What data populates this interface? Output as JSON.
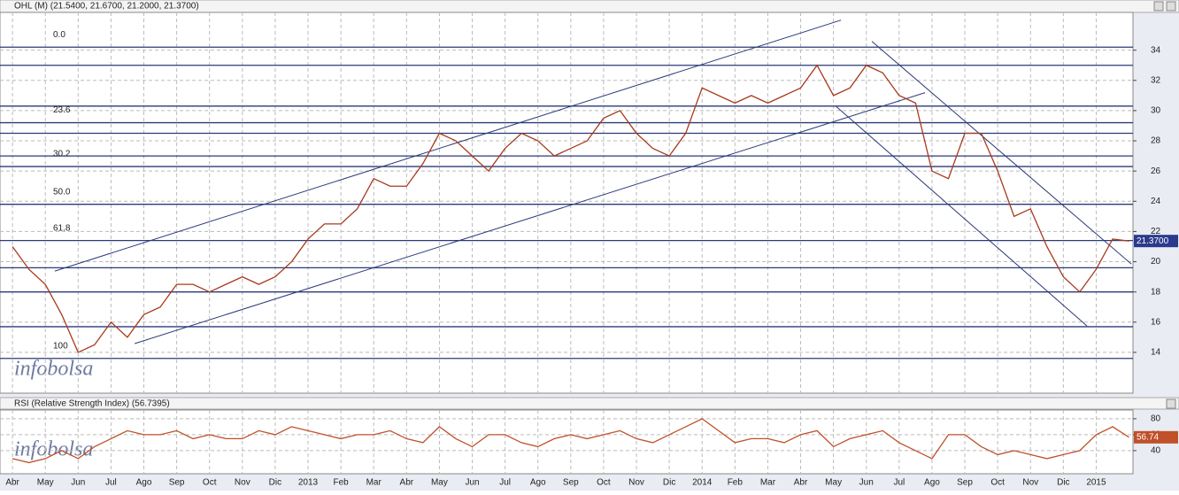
{
  "chart_data": [
    {
      "type": "line",
      "title": "OHL (M) (21.5400, 21.6700, 21.2000, 21.3700)",
      "watermark": "infobolsa",
      "x": [
        0,
        0.5,
        1,
        1.5,
        2,
        2.5,
        3,
        3.5,
        4,
        4.5,
        5,
        5.5,
        6,
        6.5,
        7,
        7.5,
        8,
        8.5,
        9,
        9.5,
        10,
        10.5,
        11,
        11.5,
        12,
        12.5,
        13,
        13.5,
        14,
        14.5,
        15,
        15.5,
        16,
        16.5,
        17,
        17.5,
        18,
        18.5,
        19,
        19.5,
        20,
        20.5,
        21,
        21.5,
        22,
        22.5,
        23,
        23.5,
        24,
        24.5,
        25,
        25.5,
        26,
        26.5,
        27,
        27.5,
        28,
        28.5,
        29,
        29.5,
        30,
        30.5,
        31,
        31.5,
        32,
        32.5,
        33,
        33.5,
        34
      ],
      "series": [
        {
          "name": "OHL",
          "color": "#a83a1c",
          "values": [
            21,
            19.5,
            18.5,
            16.5,
            14,
            14.5,
            16,
            15,
            16.5,
            17,
            18.5,
            18.5,
            18,
            18.5,
            19,
            18.5,
            19,
            20,
            21.5,
            22.5,
            22.5,
            23.5,
            25.5,
            25,
            25,
            26.5,
            28.5,
            28,
            27,
            26,
            27.5,
            28.5,
            28,
            27,
            27.5,
            28,
            29.5,
            30,
            28.5,
            27.5,
            27,
            28.5,
            31.5,
            31,
            30.5,
            31,
            30.5,
            31,
            31.5,
            33,
            31,
            31.5,
            33,
            32.5,
            31,
            30.5,
            26,
            25.5,
            28.5,
            28.5,
            26,
            23,
            23.5,
            21,
            19,
            18,
            19.5,
            21.5,
            21.37
          ]
        }
      ],
      "last_value_label": "21.3700",
      "tag_color": "#2b3a8c",
      "xlim": [
        -0.38,
        34.12
      ],
      "xticks": [
        {
          "value": 0,
          "label": "Abr"
        },
        {
          "value": 1,
          "label": "May"
        },
        {
          "value": 2,
          "label": "Jun"
        },
        {
          "value": 3,
          "label": "Jul"
        },
        {
          "value": 4,
          "label": "Ago"
        },
        {
          "value": 5,
          "label": "Sep"
        },
        {
          "value": 6,
          "label": "Oct"
        },
        {
          "value": 7,
          "label": "Nov"
        },
        {
          "value": 8,
          "label": "Dic"
        },
        {
          "value": 9,
          "label": "2013"
        },
        {
          "value": 10,
          "label": "Feb"
        },
        {
          "value": 11,
          "label": "Mar"
        },
        {
          "value": 12,
          "label": "Abr"
        },
        {
          "value": 13,
          "label": "May"
        },
        {
          "value": 14,
          "label": "Jun"
        },
        {
          "value": 15,
          "label": "Jul"
        },
        {
          "value": 16,
          "label": "Ago"
        },
        {
          "value": 17,
          "label": "Sep"
        },
        {
          "value": 18,
          "label": "Oct"
        },
        {
          "value": 19,
          "label": "Nov"
        },
        {
          "value": 20,
          "label": "Dic"
        },
        {
          "value": 21,
          "label": "2014"
        },
        {
          "value": 22,
          "label": "Feb"
        },
        {
          "value": 23,
          "label": "Mar"
        },
        {
          "value": 24,
          "label": "Abr"
        },
        {
          "value": 25,
          "label": "May"
        },
        {
          "value": 26,
          "label": "Jun"
        },
        {
          "value": 27,
          "label": "Jul"
        },
        {
          "value": 28,
          "label": "Ago"
        },
        {
          "value": 29,
          "label": "Sep"
        },
        {
          "value": 30,
          "label": "Oct"
        },
        {
          "value": 31,
          "label": "Nov"
        },
        {
          "value": 32,
          "label": "Dic"
        },
        {
          "value": 33,
          "label": "2015"
        }
      ],
      "ylim": [
        11.3,
        36.5
      ],
      "yticks": [
        14,
        16,
        18,
        20,
        22,
        24,
        26,
        28,
        30,
        32,
        34
      ],
      "grid": true,
      "levels": [
        {
          "value": 34.2,
          "label": "0.0"
        },
        {
          "value": 33
        },
        {
          "value": 30.3
        },
        {
          "value": 29.2,
          "label": "23.6"
        },
        {
          "value": 28.5
        },
        {
          "value": 27
        },
        {
          "value": 26.3,
          "label": "30.2"
        },
        {
          "value": 23.8,
          "label": "50.0"
        },
        {
          "value": 21.4,
          "label": "61.8"
        },
        {
          "value": 19.6
        },
        {
          "value": 18
        },
        {
          "value": 15.7
        },
        {
          "value": 13.6,
          "label": "100"
        }
      ],
      "trendlines": [
        [
          1.29,
          19.38,
          25.23,
          35.99
        ],
        [
          3.72,
          14.58,
          27.79,
          31.19
        ],
        [
          26.17,
          34.58,
          34.07,
          19.85
        ],
        [
          25.09,
          30.26,
          32.72,
          15.75
        ]
      ]
    },
    {
      "type": "line",
      "title": "RSI (Relative Strength Index) (56.7395)",
      "watermark": "infobolsa",
      "series": [
        {
          "name": "RSI",
          "color": "#c0502a",
          "values": [
            30,
            25,
            30,
            40,
            30,
            45,
            55,
            65,
            60,
            60,
            65,
            55,
            60,
            55,
            55,
            65,
            60,
            70,
            65,
            60,
            55,
            60,
            60,
            65,
            55,
            50,
            70,
            55,
            45,
            60,
            60,
            50,
            45,
            55,
            60,
            55,
            60,
            65,
            55,
            50,
            60,
            70,
            80,
            65,
            50,
            55,
            55,
            50,
            60,
            65,
            45,
            55,
            60,
            65,
            50,
            40,
            30,
            60,
            60,
            45,
            35,
            40,
            35,
            30,
            35,
            40,
            60,
            70,
            56.74
          ]
        }
      ],
      "last_value_label": "56.74",
      "tag_color": "#c0502a",
      "ylim": [
        11,
        91
      ],
      "yticks": [
        40,
        60,
        80
      ],
      "grid": true
    }
  ]
}
